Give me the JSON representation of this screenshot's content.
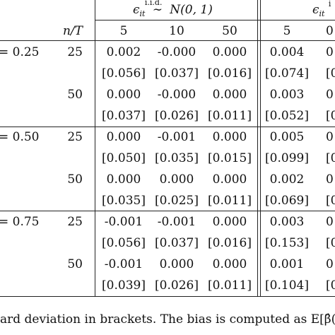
{
  "header": {
    "group1": {
      "epsilon": "ϵ",
      "subscript": "it",
      "iid": "i.i.d.",
      "tilde": "∼",
      "dist": "N(0, 1)"
    },
    "group2": {
      "epsilon": "ϵ",
      "subscript": "it",
      "iid": "i"
    },
    "nT_label": "n/T",
    "T_values": [
      "5",
      "10",
      "50"
    ],
    "T_values2": [
      "5",
      "0"
    ]
  },
  "rows": [
    {
      "tau": "= 0.25",
      "n": "25",
      "group1": [
        "0.002",
        "-0.000",
        "0.000"
      ],
      "group2": [
        "0.004",
        "0"
      ]
    },
    {
      "tau": "",
      "n": "",
      "group1": [
        "[0.056]",
        "[0.037]",
        "[0.016]"
      ],
      "group2": [
        "[0.074]",
        "[0"
      ]
    },
    {
      "tau": "",
      "n": "50",
      "group1": [
        "0.000",
        "-0.000",
        "0.000"
      ],
      "group2": [
        "0.003",
        "0"
      ]
    },
    {
      "tau": "",
      "n": "",
      "group1": [
        "[0.037]",
        "[0.026]",
        "[0.011]"
      ],
      "group2": [
        "[0.052]",
        "[0"
      ]
    },
    {
      "tau": "= 0.50",
      "n": "25",
      "group1": [
        "0.000",
        "-0.001",
        "0.000"
      ],
      "group2": [
        "0.005",
        "0"
      ]
    },
    {
      "tau": "",
      "n": "",
      "group1": [
        "[0.050]",
        "[0.035]",
        "[0.015]"
      ],
      "group2": [
        "[0.099]",
        "[0"
      ]
    },
    {
      "tau": "",
      "n": "50",
      "group1": [
        "0.000",
        "0.000",
        "0.000"
      ],
      "group2": [
        "0.002",
        "0"
      ]
    },
    {
      "tau": "",
      "n": "",
      "group1": [
        "[0.035]",
        "[0.025]",
        "[0.011]"
      ],
      "group2": [
        "[0.069]",
        "[0"
      ]
    },
    {
      "tau": "= 0.75",
      "n": "25",
      "group1": [
        "-0.001",
        "-0.001",
        "0.000"
      ],
      "group2": [
        "0.003",
        "0"
      ]
    },
    {
      "tau": "",
      "n": "",
      "group1": [
        "[0.056]",
        "[0.037]",
        "[0.016]"
      ],
      "group2": [
        "[0.153]",
        "[0"
      ]
    },
    {
      "tau": "",
      "n": "50",
      "group1": [
        "-0.001",
        "0.000",
        "0.000"
      ],
      "group2": [
        "0.001",
        "0"
      ]
    },
    {
      "tau": "",
      "n": "",
      "group1": [
        "[0.039]",
        "[0.026]",
        "[0.011]"
      ],
      "group2": [
        "[0.104]",
        "[0"
      ]
    }
  ],
  "footnote": "ard deviation in brackets. The bias is computed as E[β̂(τ"
}
